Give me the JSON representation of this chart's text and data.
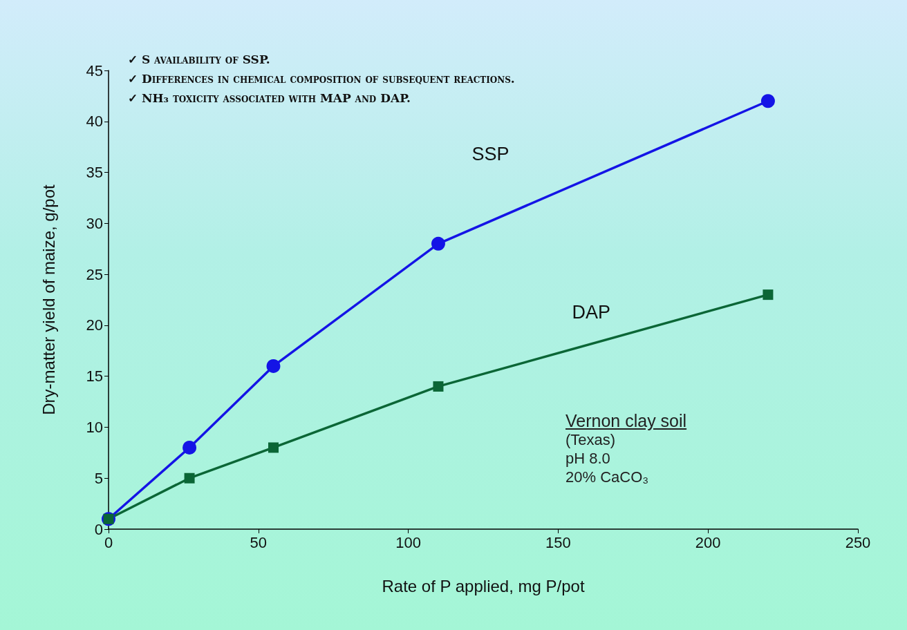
{
  "chart_data": {
    "type": "line",
    "xlabel": "Rate of P applied, mg P/pot",
    "ylabel": "Dry-matter yield of maize, g/pot",
    "x": [
      0,
      27,
      55,
      110,
      220
    ],
    "series": [
      {
        "name": "SSP",
        "color": "#1414e6",
        "marker": "circle",
        "values": [
          1,
          8,
          16,
          28,
          42
        ]
      },
      {
        "name": "DAP",
        "color": "#0b6636",
        "marker": "square",
        "values": [
          1,
          5,
          8,
          14,
          23
        ]
      }
    ],
    "xlim": [
      0,
      250
    ],
    "xticks": [
      0,
      50,
      100,
      150,
      200,
      250
    ],
    "ylim": [
      0,
      45
    ],
    "yticks": [
      0,
      5,
      10,
      15,
      20,
      25,
      30,
      35,
      40,
      45
    ],
    "grid": false,
    "legend": false,
    "line_style": "solid",
    "annotations": [
      "✓ S availability of SSP.",
      "✓ Differences in chemical composition of subsequent reactions.",
      "✓ NH₃ toxicity associated with MAP and DAP.",
      "Vernon clay soil",
      "(Texas)",
      "pH 8.0",
      "20% CaCO₃"
    ]
  }
}
